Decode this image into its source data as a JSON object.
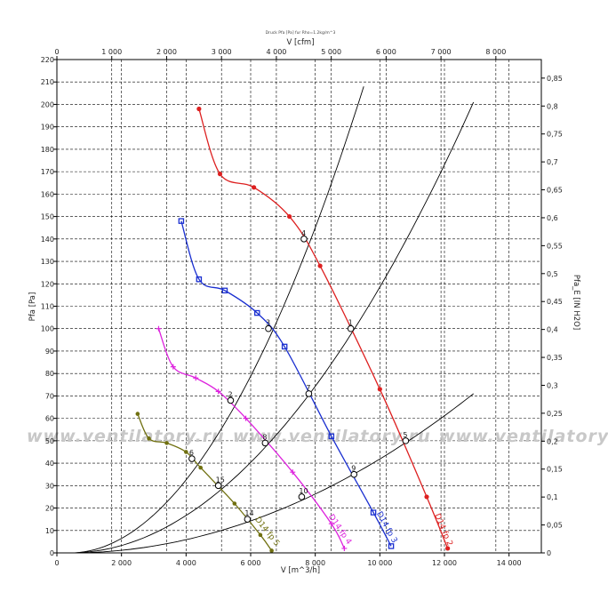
{
  "chart_data": {
    "type": "line",
    "title": "Druck Pfa [Pa] fur Rho=1.2kg/m^3",
    "xlabel": "V [m^3/h]",
    "ylabel": "Pfa [Pa]",
    "x2label": "V [cfm]",
    "y2label": "Pfa_E [IN H2O]",
    "xlim": [
      0,
      15000
    ],
    "ylim": [
      0,
      220
    ],
    "x2lim": [
      0,
      8828.7
    ],
    "y2lim": [
      0,
      0.8832
    ],
    "x_ticks": [
      0,
      2000,
      4000,
      6000,
      8000,
      10000,
      12000,
      14000
    ],
    "x_tick_labels": [
      "0",
      "2 000",
      "4 000",
      "6 000",
      "8 000",
      "10 000",
      "12 000",
      "14 000"
    ],
    "y_ticks": [
      0,
      10,
      20,
      30,
      40,
      50,
      60,
      70,
      80,
      90,
      100,
      110,
      120,
      130,
      140,
      150,
      160,
      170,
      180,
      190,
      200,
      210,
      220
    ],
    "y_tick_labels": [
      "0",
      "10",
      "20",
      "30",
      "40",
      "50",
      "60",
      "70",
      "80",
      "90",
      "100",
      "110",
      "120",
      "130",
      "140",
      "150",
      "160",
      "170",
      "180",
      "190",
      "200",
      "210",
      "220"
    ],
    "x2_ticks": [
      0,
      1000,
      2000,
      3000,
      4000,
      5000,
      6000,
      7000,
      8000
    ],
    "x2_tick_labels": [
      "0",
      "1 000",
      "2 000",
      "3 000",
      "4 000",
      "5 000",
      "6 000",
      "7 000",
      "8 000"
    ],
    "y2_ticks": [
      0,
      0.05,
      0.1,
      0.15,
      0.2,
      0.25,
      0.3,
      0.35,
      0.4,
      0.45,
      0.5,
      0.55,
      0.6,
      0.65,
      0.7,
      0.75,
      0.8,
      0.85
    ],
    "y2_tick_labels": [
      "0",
      "0,05",
      "0,1",
      "0,15",
      "0,2",
      "0,25",
      "0,3",
      "0,35",
      "0,4",
      "0,45",
      "0,5",
      "0,55",
      "0,6",
      "0,65",
      "0,7",
      "0,75",
      "0,8",
      "0,85"
    ],
    "grid": true,
    "series": [
      {
        "name": "D14 fp 2",
        "color": "#dd2020",
        "marker": "circle",
        "x": [
          4400,
          5050,
          6100,
          7200,
          8150,
          10000,
          11450,
          12100
        ],
        "y": [
          198,
          169,
          163,
          150,
          128,
          73,
          25,
          2
        ]
      },
      {
        "name": "D14 fp 3",
        "color": "#1a2fd0",
        "marker": "square",
        "x": [
          3850,
          4400,
          5200,
          6200,
          7050,
          8500,
          9800,
          10350
        ],
        "y": [
          148,
          122,
          117,
          107,
          92,
          52,
          18,
          3
        ]
      },
      {
        "name": "D14 fp 4",
        "color": "#dd22dd",
        "marker": "plus",
        "x": [
          3150,
          3600,
          4300,
          5000,
          5850,
          7300,
          8500,
          8900
        ],
        "y": [
          100,
          83,
          78,
          72,
          60,
          36,
          13,
          2
        ]
      },
      {
        "name": "D14 fp 5",
        "color": "#707010",
        "marker": "dot",
        "x": [
          2500,
          2850,
          3400,
          4000,
          4450,
          5500,
          6300,
          6650
        ],
        "y": [
          62,
          51,
          49,
          45,
          38,
          22,
          8,
          1
        ]
      }
    ],
    "system_curves": [
      {
        "x_end": 9500,
        "y_end": 208
      },
      {
        "x_end": 12900,
        "y_end": 201
      },
      {
        "x_end": 12900,
        "y_end": 71
      }
    ],
    "operating_points": [
      {
        "label": "4",
        "x": 7650,
        "y": 140
      },
      {
        "label": "3",
        "x": 6550,
        "y": 100
      },
      {
        "label": "2",
        "x": 5380,
        "y": 68
      },
      {
        "label": "6",
        "x": 4180,
        "y": 42
      },
      {
        "label": "1",
        "x": 9100,
        "y": 100
      },
      {
        "label": "7",
        "x": 7800,
        "y": 71
      },
      {
        "label": "8",
        "x": 6450,
        "y": 49
      },
      {
        "label": "15",
        "x": 5000,
        "y": 30
      },
      {
        "label": "5",
        "x": 10800,
        "y": 50
      },
      {
        "label": "9",
        "x": 9200,
        "y": 35
      },
      {
        "label": "10",
        "x": 7580,
        "y": 25
      },
      {
        "label": "14",
        "x": 5900,
        "y": 15
      }
    ]
  },
  "watermark": {
    "text": "www.ventilatory.ru",
    "repeats": [
      "www.ventilatory.ru",
      "www.ventilatory.ru",
      "www.ventilatory.ru",
      "www.ventil"
    ]
  }
}
